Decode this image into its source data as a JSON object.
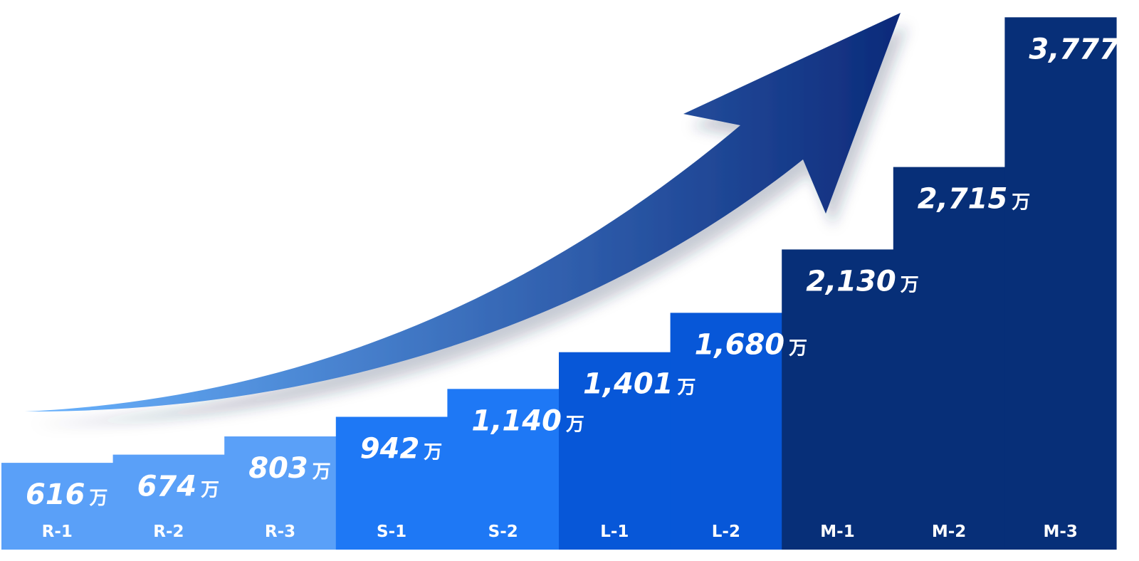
{
  "chart_data": {
    "type": "bar",
    "title": "",
    "xlabel": "",
    "ylabel": "",
    "unit": "万",
    "ylim": [
      0,
      3900
    ],
    "grid": false,
    "legend": "none",
    "categories": [
      "R-1",
      "R-2",
      "R-3",
      "S-1",
      "S-2",
      "L-1",
      "L-2",
      "M-1",
      "M-2",
      "M-3"
    ],
    "values": [
      616,
      674,
      803,
      942,
      1140,
      1401,
      1680,
      2130,
      2715,
      3777
    ],
    "value_labels": [
      "616",
      "674",
      "803",
      "942",
      "1,140",
      "1,401",
      "1,680",
      "2,130",
      "2,715",
      "3,777"
    ],
    "colors": [
      "#5aa0f8",
      "#5aa0f8",
      "#5aa0f8",
      "#1e78f5",
      "#1e78f5",
      "#0757d8",
      "#0757d8",
      "#072f78",
      "#072f78",
      "#072f78"
    ],
    "arrow": {
      "from": "#6ab4ff",
      "to": "#0c2a7a"
    }
  }
}
